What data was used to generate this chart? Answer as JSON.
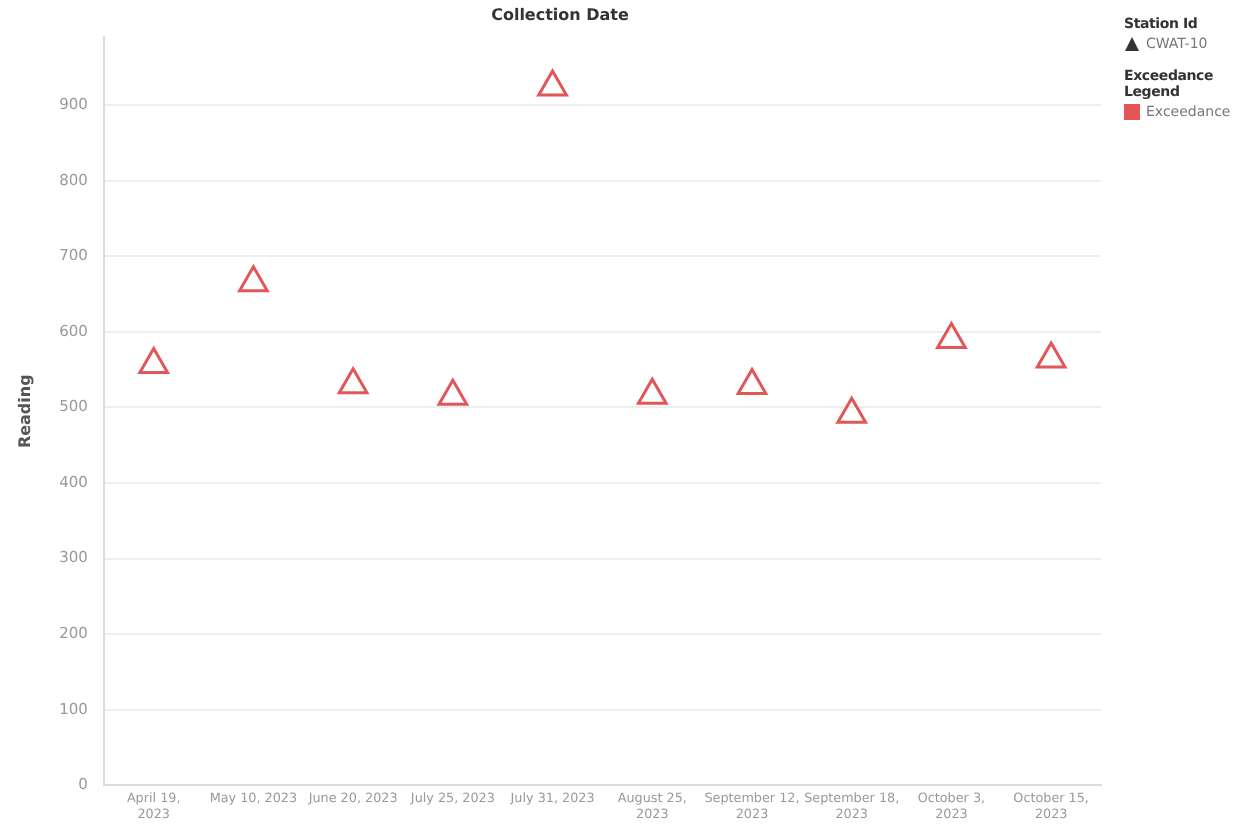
{
  "chart_data": {
    "type": "scatter",
    "xlabel": "Collection Date",
    "ylabel": "Reading",
    "categories": [
      "April 19, 2023",
      "May 10, 2023",
      "June 20, 2023",
      "July 25, 2023",
      "July 31, 2023",
      "August 25, 2023",
      "September 12, 2023",
      "September 18, 2023",
      "October 3, 2023",
      "October 15, 2023"
    ],
    "series": [
      {
        "name": "CWAT-10",
        "color": "#e15759",
        "values": [
          557,
          665,
          530,
          515,
          924,
          516,
          529,
          491,
          590,
          564
        ]
      }
    ],
    "legend_title": "Station Id",
    "annotations": [
      "Exceedance Legend",
      "Exceedance"
    ],
    "ylim": [
      0,
      990
    ],
    "yticks": [
      0,
      100,
      200,
      300,
      400,
      500,
      600,
      700,
      800,
      900
    ],
    "grid": "y",
    "legend": "top right",
    "marker": "triangle"
  }
}
